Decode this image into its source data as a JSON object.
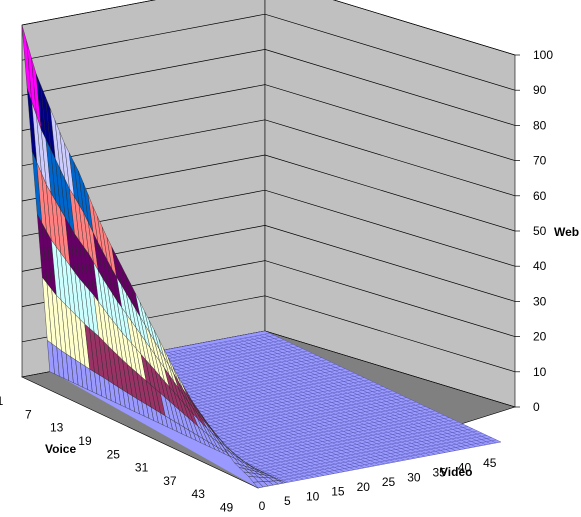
{
  "chart_data": {
    "type": "surface",
    "title": "",
    "x_axis": {
      "label": "Voice",
      "ticks": [
        "1",
        "7",
        "13",
        "19",
        "25",
        "31",
        "37",
        "43",
        "49"
      ],
      "range": [
        1,
        51
      ]
    },
    "y_axis": {
      "label": "Video",
      "ticks": [
        "0",
        "5",
        "10",
        "15",
        "20",
        "25",
        "30",
        "35",
        "40",
        "45"
      ],
      "range": [
        0,
        48
      ]
    },
    "z_axis": {
      "label": "Web",
      "ticks": [
        "0",
        "10",
        "20",
        "30",
        "40",
        "50",
        "60",
        "70",
        "80",
        "90",
        "100"
      ],
      "range": [
        0,
        100
      ]
    },
    "ridge_profile": [
      {
        "voice": 1,
        "web": 100
      },
      {
        "voice": 4,
        "web": 88
      },
      {
        "voice": 7,
        "web": 80
      },
      {
        "voice": 10,
        "web": 72
      },
      {
        "voice": 13,
        "web": 66
      },
      {
        "voice": 16,
        "web": 58
      },
      {
        "voice": 19,
        "web": 51
      },
      {
        "voice": 22,
        "web": 45
      },
      {
        "voice": 25,
        "web": 39
      },
      {
        "voice": 28,
        "web": 33
      },
      {
        "voice": 31,
        "web": 27
      },
      {
        "voice": 34,
        "web": 21
      },
      {
        "voice": 37,
        "web": 16
      },
      {
        "voice": 40,
        "web": 12
      },
      {
        "voice": 43,
        "web": 8
      },
      {
        "voice": 46,
        "web": 4
      },
      {
        "voice": 49,
        "web": 2
      },
      {
        "voice": 51,
        "web": 0
      }
    ],
    "band_colors": [
      "#9999ff",
      "#993366",
      "#ffffcc",
      "#ccffff",
      "#660066",
      "#ff8080",
      "#0066cc",
      "#ccccff",
      "#000080",
      "#ff00ff"
    ],
    "colors": {
      "walls": "#c0c0c0",
      "floor": "#808080",
      "grid": "#000000",
      "plateau": "#9999ff"
    },
    "grid": true,
    "legend": "none"
  }
}
